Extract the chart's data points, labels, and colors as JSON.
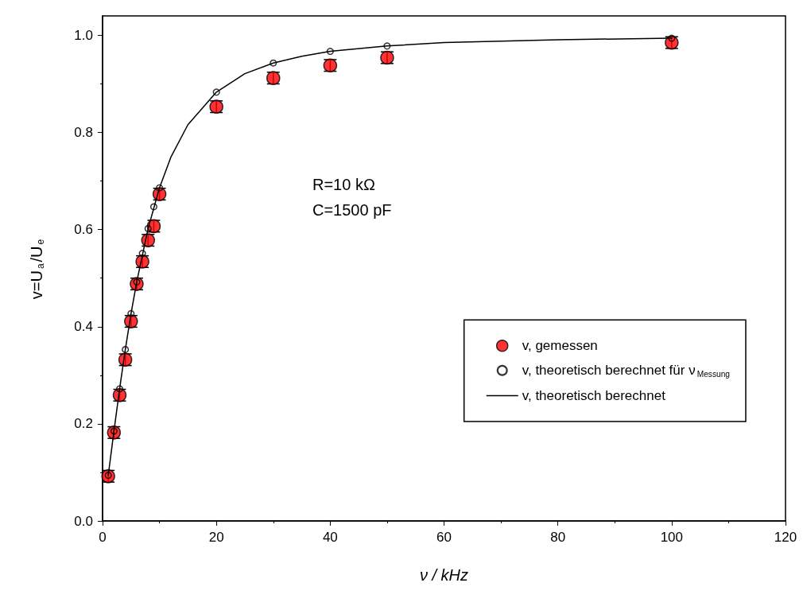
{
  "chart_data": {
    "type": "scatter",
    "xlabel": "ν / kHz",
    "ylabel": "v=U$_{a}$/U$_{e}$",
    "xlim": [
      0,
      120
    ],
    "xticks": [
      0,
      20,
      40,
      60,
      80,
      100,
      120
    ],
    "ylim": [
      0,
      1.04
    ],
    "yticks": [
      {
        "value": 0,
        "label": "0.0"
      },
      0.2,
      0.4,
      0.6,
      0.8,
      {
        "value": 1,
        "label": "1.0"
      }
    ],
    "grid": false,
    "legend": "bottom right",
    "line_style": "solid",
    "annotations": [
      {
        "text": "R=10 kΩ"
      },
      {
        "text": "C=1500 pF"
      }
    ],
    "series": [
      {
        "name": "v, gemessen",
        "marker": "circle",
        "color": "#ff0000",
        "x": [
          1,
          2,
          3,
          4,
          5,
          6,
          7,
          8,
          9,
          10,
          20,
          30,
          40,
          50,
          100
        ],
        "values": [
          0.092,
          0.182,
          0.259,
          0.332,
          0.411,
          0.488,
          0.534,
          0.578,
          0.607,
          0.673,
          0.853,
          0.912,
          0.938,
          0.954,
          0.985
        ],
        "errors": [
          0.012,
          0.012,
          0.012,
          0.012,
          0.012,
          0.012,
          0.012,
          0.012,
          0.012,
          0.012,
          0.012,
          0.012,
          0.012,
          0.012,
          0.012
        ]
      },
      {
        "name": "v, theoretisch berechnet für ν$_{Messung}$",
        "marker": "circle",
        "color": "#000000",
        "x": [
          1,
          2,
          3,
          4,
          5,
          6,
          7,
          8,
          9,
          10,
          20,
          30,
          40,
          50,
          100
        ],
        "values": [
          0.094,
          0.185,
          0.272,
          0.353,
          0.427,
          0.492,
          0.551,
          0.602,
          0.647,
          0.686,
          0.883,
          0.943,
          0.967,
          0.978,
          0.994
        ]
      },
      {
        "name": "v, theoretisch berechnet",
        "type": "line",
        "marker": "none",
        "color": "#000000",
        "x": [
          1,
          2,
          3,
          4,
          5,
          6,
          8,
          10,
          12,
          15,
          20,
          25,
          30,
          35,
          40,
          50,
          60,
          80,
          100
        ],
        "values": [
          0.094,
          0.185,
          0.272,
          0.353,
          0.427,
          0.492,
          0.602,
          0.686,
          0.749,
          0.816,
          0.883,
          0.921,
          0.943,
          0.957,
          0.967,
          0.978,
          0.985,
          0.991,
          0.994
        ]
      }
    ]
  }
}
